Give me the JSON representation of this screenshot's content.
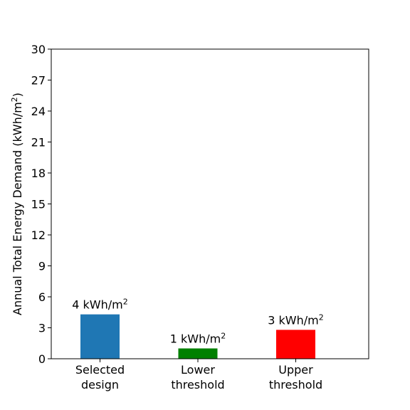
{
  "chart_data": {
    "type": "bar",
    "title": "",
    "xlabel": "",
    "ylabel": "Annual Total Energy Demand (kWh/m",
    "ylabel_superscript": "2",
    "ylabel_suffix": ")",
    "ylim": [
      0,
      30
    ],
    "yticks": [
      0,
      3,
      6,
      9,
      12,
      15,
      18,
      21,
      24,
      27,
      30
    ],
    "grid": false,
    "categories": [
      [
        "Selected",
        "design"
      ],
      [
        "Lower",
        "threshold"
      ],
      [
        "Upper",
        "threshold"
      ]
    ],
    "values": [
      4.3,
      1.0,
      2.8
    ],
    "data_labels": [
      "4 kWh/m",
      "1 kWh/m",
      "3 kWh/m"
    ],
    "data_label_superscript": "2",
    "colors": [
      "#1f77b4",
      "#008000",
      "#ff0000"
    ]
  }
}
